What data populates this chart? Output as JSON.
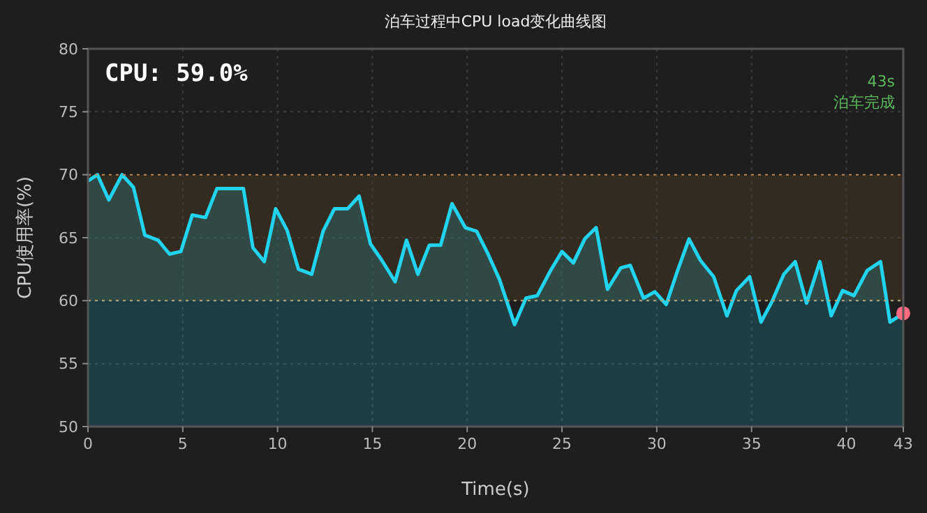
{
  "chart_data": {
    "type": "area",
    "title": "泊车过程中CPU load变化曲线图",
    "xlabel": "Time(s)",
    "ylabel": "CPU使用率(%)",
    "xlim": [
      0,
      43
    ],
    "xticks": [
      0,
      5,
      10,
      15,
      20,
      25,
      30,
      35,
      40,
      43
    ],
    "ylim": [
      50,
      80
    ],
    "yticks": [
      50,
      55,
      60,
      65,
      70,
      75,
      80
    ],
    "grid": true,
    "series": [
      {
        "color": "#22d3ee",
        "marker": "none",
        "x": [
          0,
          0.5,
          1.1,
          1.8,
          2.4,
          3.0,
          3.7,
          4.3,
          4.9,
          5.5,
          6.2,
          6.8,
          7.5,
          8.2,
          8.7,
          9.3,
          9.9,
          10.5,
          11.1,
          11.8,
          12.4,
          13.0,
          13.7,
          14.3,
          14.9,
          15.5,
          16.2,
          16.8,
          17.4,
          18.0,
          18.6,
          19.2,
          19.9,
          20.5,
          21.1,
          21.7,
          22.5,
          23.1,
          23.7,
          24.4,
          25.0,
          25.6,
          26.2,
          26.8,
          27.4,
          28.1,
          28.6,
          29.3,
          29.9,
          30.5,
          31.1,
          31.7,
          32.3,
          33.0,
          33.7,
          34.2,
          34.9,
          35.5,
          36.1,
          36.7,
          37.3,
          37.9,
          38.6,
          39.2,
          39.8,
          40.4,
          41.1,
          41.8,
          42.3,
          43
        ],
        "values": [
          69.5,
          70.0,
          68.0,
          70.0,
          69.0,
          65.2,
          64.8,
          63.7,
          63.9,
          66.8,
          66.6,
          68.9,
          68.9,
          68.9,
          64.2,
          63.1,
          67.3,
          65.6,
          62.5,
          62.1,
          65.5,
          67.3,
          67.3,
          68.3,
          64.5,
          63.2,
          61.5,
          64.8,
          62.1,
          64.4,
          64.4,
          67.7,
          65.8,
          65.5,
          63.7,
          61.7,
          58.1,
          60.2,
          60.4,
          62.4,
          63.9,
          63.0,
          64.9,
          65.8,
          60.9,
          62.6,
          62.8,
          60.2,
          60.7,
          59.7,
          62.4,
          64.9,
          63.2,
          61.9,
          58.8,
          60.8,
          61.9,
          58.3,
          60.0,
          62.1,
          63.1,
          59.8,
          63.1,
          58.8,
          60.8,
          60.4,
          62.4,
          63.1,
          58.3,
          59.0
        ]
      },
      {
        "type": "scatter",
        "color": "#ff6b81",
        "marker": "circle",
        "x": [
          43
        ],
        "values": [
          59.0
        ]
      }
    ],
    "line_style": "solid",
    "ref_lines": [
      {
        "axis": "y",
        "value": 60,
        "color": "#b8a878",
        "line_style": "dotted"
      },
      {
        "axis": "y",
        "value": 70,
        "color": "#b8885a",
        "line_style": "dotted"
      }
    ],
    "bands": [
      {
        "axis": "y",
        "from": 60,
        "to": 70,
        "color": "#3a2e20"
      }
    ],
    "annotations": [
      "CPU: 59.0%",
      "43s",
      "泊车完成"
    ]
  }
}
